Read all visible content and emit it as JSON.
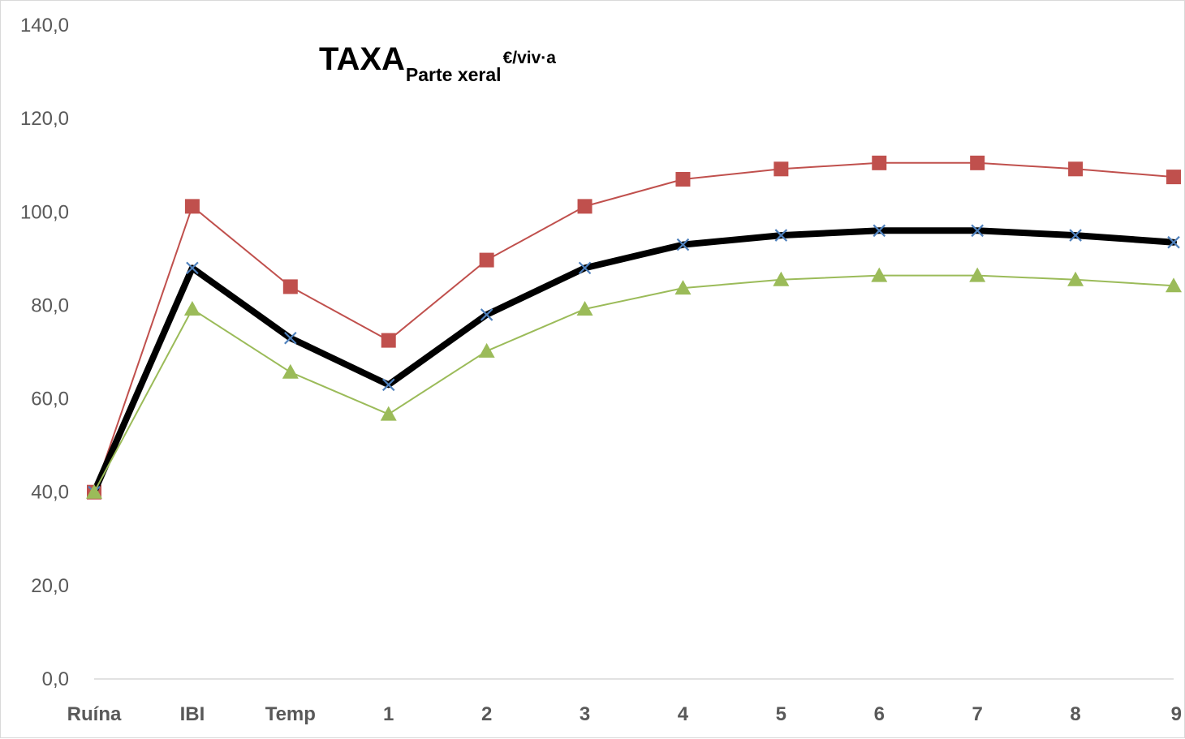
{
  "chart_data": {
    "type": "line",
    "title": {
      "main": "TAXA",
      "subscript": "Parte xeral",
      "superscript": "€/viv·a"
    },
    "xlabel": "",
    "ylabel": "",
    "categories": [
      "Ruína",
      "IBI",
      "Temp",
      "1",
      "2",
      "3",
      "4",
      "5",
      "6",
      "7",
      "8",
      "9"
    ],
    "ylim": [
      0,
      140
    ],
    "yticks": [
      "0,0",
      "20,0",
      "40,0",
      "60,0",
      "80,0",
      "100,0",
      "120,0",
      "140,0"
    ],
    "grid": false,
    "legend": "none",
    "series": [
      {
        "values": [
          40.0,
          101.2,
          84.0,
          72.5,
          89.7,
          101.2,
          107.0,
          109.2,
          110.5,
          110.5,
          109.2,
          107.5
        ],
        "color": "#c0504d",
        "marker": "square",
        "line_width": 2
      },
      {
        "values": [
          40.0,
          88.0,
          73.0,
          63.0,
          78.0,
          88.0,
          93.0,
          95.0,
          96.0,
          96.0,
          95.0,
          93.5
        ],
        "color": "#000000",
        "marker_color": "#4f81bd",
        "marker": "x",
        "line_width": 8
      },
      {
        "values": [
          40.0,
          79.2,
          65.7,
          56.7,
          70.2,
          79.2,
          83.7,
          85.5,
          86.4,
          86.4,
          85.5,
          84.2
        ],
        "color": "#9bbb59",
        "marker": "triangle",
        "line_width": 2
      }
    ]
  }
}
